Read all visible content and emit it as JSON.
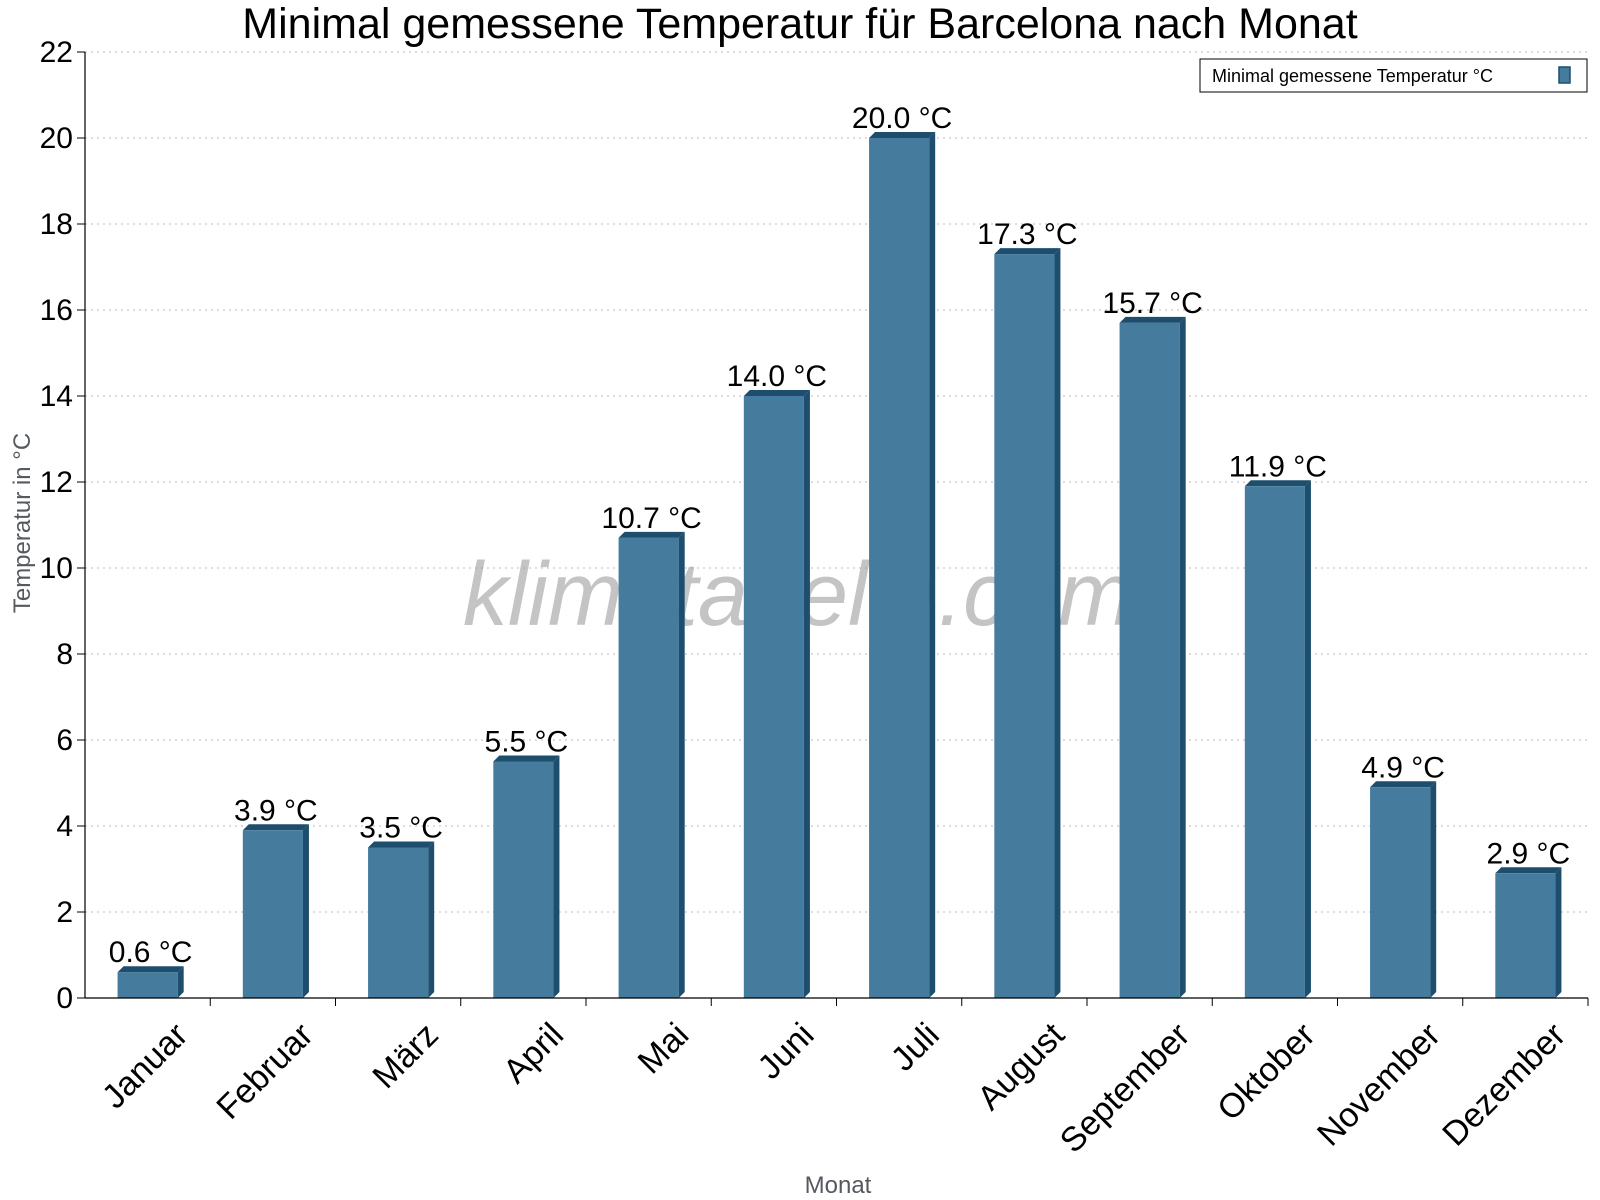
{
  "chart_data": {
    "type": "bar",
    "title": "Minimal gemessene Temperatur für Barcelona nach Monat",
    "xlabel": "Monat",
    "ylabel": "Temperatur in °C",
    "categories": [
      "Januar",
      "Februar",
      "März",
      "April",
      "Mai",
      "Juni",
      "Juli",
      "August",
      "September",
      "Oktober",
      "November",
      "Dezember"
    ],
    "series": [
      {
        "name": "Minimal gemessene Temperatur °C",
        "values": [
          0.6,
          3.9,
          3.5,
          5.5,
          10.7,
          14.0,
          20.0,
          17.3,
          15.7,
          11.9,
          4.9,
          2.9
        ],
        "labels": [
          "0.6 °C",
          "3.9 °C",
          "3.5 °C",
          "5.5 °C",
          "10.7 °C",
          "14.0 °C",
          "20.0 °C",
          "17.3 °C",
          "15.7 °C",
          "11.9 °C",
          "4.9 °C",
          "2.9 °C"
        ]
      }
    ],
    "ylim": [
      0,
      22
    ],
    "yticks": [
      0,
      2,
      4,
      6,
      8,
      10,
      12,
      14,
      16,
      18,
      20,
      22
    ],
    "grid": true,
    "legend_position": "top-right",
    "bar_color": "#457b9d",
    "bar_side_color": "#1d4e6e",
    "watermark": "klimatabelle.com"
  }
}
